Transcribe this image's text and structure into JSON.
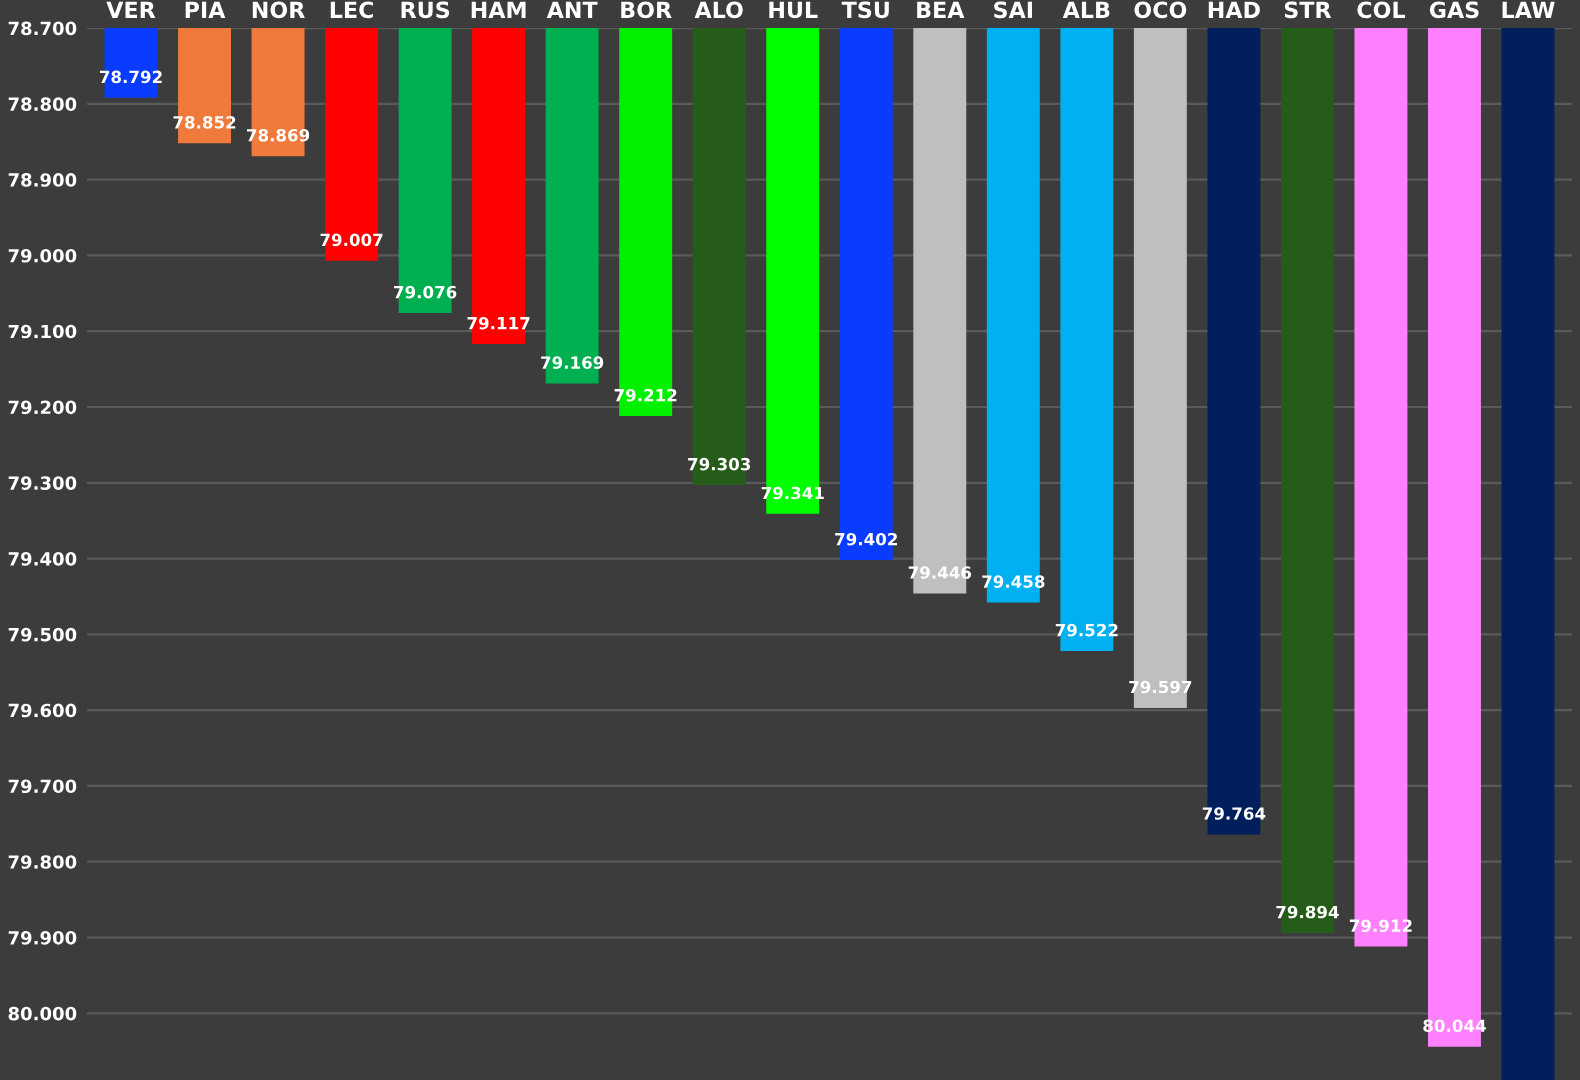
{
  "chart_data": {
    "type": "bar",
    "categories": [
      "VER",
      "PIA",
      "NOR",
      "LEC",
      "RUS",
      "HAM",
      "ANT",
      "BOR",
      "ALO",
      "HUL",
      "TSU",
      "BEA",
      "SAI",
      "ALB",
      "OCO",
      "HAD",
      "STR",
      "COL",
      "GAS",
      "LAW"
    ],
    "values": [
      78.792,
      78.852,
      78.869,
      79.007,
      79.076,
      79.117,
      79.169,
      79.212,
      79.303,
      79.341,
      79.402,
      79.446,
      79.458,
      79.522,
      79.597,
      79.764,
      79.894,
      79.912,
      80.044,
      80.088
    ],
    "value_labels": [
      "78.792",
      "78.852",
      "78.869",
      "79.007",
      "79.076",
      "79.117",
      "79.169",
      "79.212",
      "79.303",
      "79.341",
      "79.402",
      "79.446",
      "79.458",
      "79.522",
      "79.597",
      "79.764",
      "79.894",
      "79.912",
      "80.044",
      null
    ],
    "colors": [
      "#0a3cff",
      "#ef7a3c",
      "#ef7a3c",
      "#ff0000",
      "#00b050",
      "#ff0000",
      "#00b050",
      "#00f000",
      "#265c1a",
      "#00ff00",
      "#0a3cff",
      "#bfbfbf",
      "#00b0f0",
      "#00b0f0",
      "#bfbfbf",
      "#001f5c",
      "#265c1a",
      "#ff80ff",
      "#ff80ff",
      "#001f5c"
    ],
    "ylim": [
      80.088,
      78.7
    ],
    "yticks": [
      {
        "value": 78.7,
        "label": "78.700"
      },
      {
        "value": 78.8,
        "label": "78.800"
      },
      {
        "value": 78.9,
        "label": "78.900"
      },
      {
        "value": 79.0,
        "label": "79.000"
      },
      {
        "value": 79.1,
        "label": "79.100"
      },
      {
        "value": 79.2,
        "label": "79.200"
      },
      {
        "value": 79.3,
        "label": "79.300"
      },
      {
        "value": 79.4,
        "label": "79.400"
      },
      {
        "value": 79.5,
        "label": "79.500"
      },
      {
        "value": 79.6,
        "label": "79.600"
      },
      {
        "value": 79.7,
        "label": "79.700"
      },
      {
        "value": 79.8,
        "label": "79.800"
      },
      {
        "value": 79.9,
        "label": "79.900"
      },
      {
        "value": 80.0,
        "label": "80.000"
      }
    ],
    "grid": "y"
  }
}
